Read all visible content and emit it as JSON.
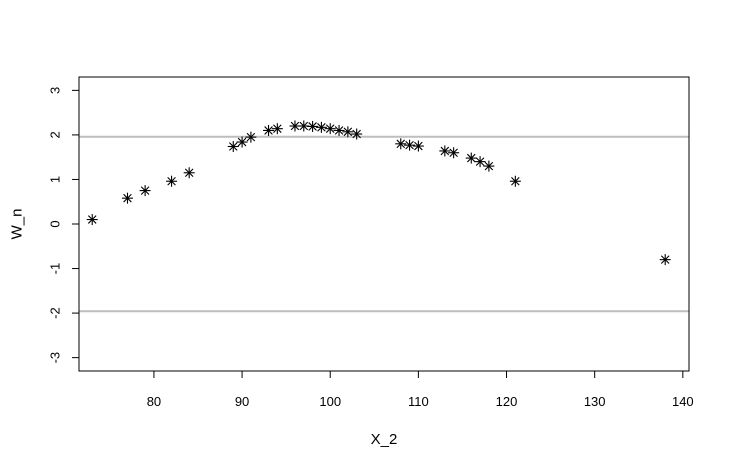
{
  "chart_data": {
    "type": "scatter",
    "title": "",
    "xlabel": "X_2",
    "ylabel": "W_n",
    "xlim": [
      71.5,
      140.7
    ],
    "ylim": [
      -3.3,
      3.3
    ],
    "x_ticks": [
      80,
      90,
      100,
      110,
      120,
      130,
      140
    ],
    "y_ticks": [
      -3,
      -2,
      -1,
      0,
      1,
      2,
      3
    ],
    "grid": false,
    "marker": "asterisk",
    "reference_lines": [
      1.96,
      -1.96
    ],
    "colors": {
      "points": "#000000",
      "reference_lines": "#bebebe",
      "frame": "#000000"
    },
    "series": [
      {
        "x": [
          73,
          77,
          79,
          82,
          84,
          89,
          90,
          91,
          93,
          94,
          96,
          97,
          98,
          99,
          100,
          101,
          102,
          103,
          108,
          109,
          110,
          113,
          114,
          116,
          117,
          118,
          121,
          138
        ],
        "y": [
          0.1,
          0.58,
          0.75,
          0.96,
          1.15,
          1.74,
          1.84,
          1.95,
          2.1,
          2.14,
          2.2,
          2.2,
          2.19,
          2.17,
          2.14,
          2.1,
          2.07,
          2.02,
          1.8,
          1.77,
          1.75,
          1.64,
          1.6,
          1.48,
          1.4,
          1.3,
          0.96,
          -0.8
        ]
      }
    ]
  }
}
